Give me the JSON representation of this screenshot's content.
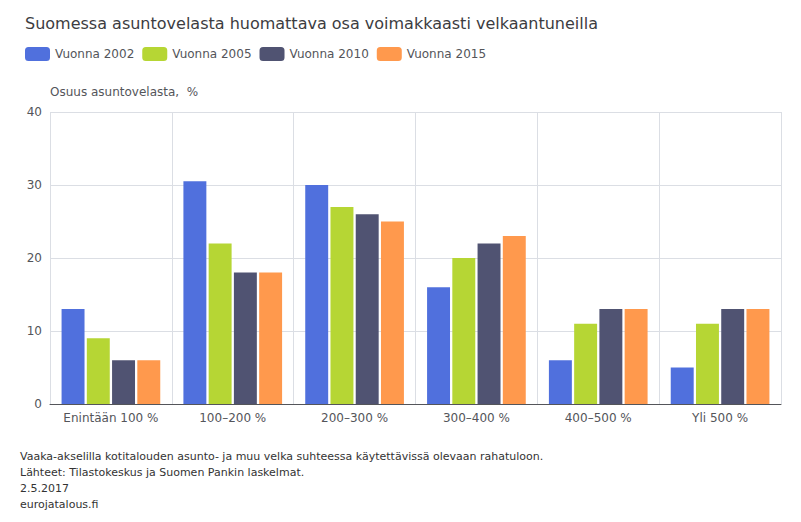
{
  "chart_data": {
    "type": "bar",
    "title": "Suomessa asuntovelasta huomattava osa voimakkaasti velkaantuneilla",
    "ylabel": "Osuus asuntovelasta,  %",
    "categories": [
      "Enintään 100 %",
      "100–200 %",
      "200–300 %",
      "300–400 %",
      "400–500 %",
      "Yli 500 %"
    ],
    "series": [
      {
        "name": "Vuonna 2002",
        "values": [
          13,
          30.5,
          30,
          16,
          6,
          5
        ]
      },
      {
        "name": "Vuonna 2005",
        "values": [
          9,
          22,
          27,
          20,
          11,
          11
        ]
      },
      {
        "name": "Vuonna 2010",
        "values": [
          6,
          18,
          26,
          22,
          13,
          13
        ]
      },
      {
        "name": "Vuonna 2015",
        "values": [
          6,
          18,
          25,
          23,
          13,
          13
        ]
      }
    ],
    "ylim": [
      0,
      40
    ],
    "yticks": [
      0,
      10,
      20,
      30,
      40
    ],
    "grid": true,
    "legend": "upper left",
    "annotations": [
      "Vaaka-akselilla kotitalouden asunto- ja muu velka suhteessa käytettävissä olevaan rahatuloon.",
      "Lähteet: Tilastokeskus ja Suomen Pankin laskelmat.",
      "2.5.2017",
      "eurojatalous.fi"
    ]
  }
}
